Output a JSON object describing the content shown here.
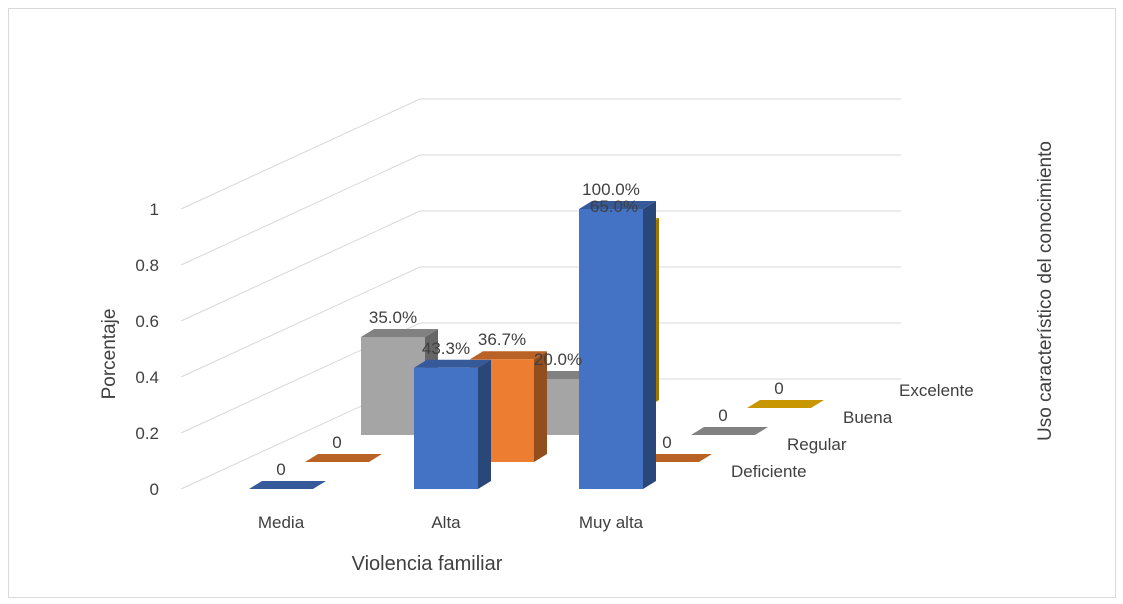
{
  "chart_data": {
    "type": "bar",
    "subtype": "3d-column",
    "title": "",
    "xlabel": "Violencia familiar",
    "ylabel": "Porcentaje",
    "zlabel": "Uso característico del conocimiento",
    "categories": [
      "Media",
      "Alta",
      "Muy alta"
    ],
    "ylim": [
      0,
      1
    ],
    "yticks": [
      "0",
      "0.2",
      "0.4",
      "0.6",
      "0.8",
      "1"
    ],
    "grid": true,
    "series": [
      {
        "name": "Deficiente",
        "color": "#4472c4",
        "values": [
          0,
          0.433,
          1.0
        ],
        "labels": [
          "0",
          "43.3%",
          "100.0%"
        ]
      },
      {
        "name": "Regular",
        "color": "#ed7d31",
        "values": [
          0,
          0.367,
          0
        ],
        "labels": [
          "0",
          "36.7%",
          "0"
        ]
      },
      {
        "name": "Buena",
        "color": "#a5a5a5",
        "values": [
          0.35,
          0.2,
          0
        ],
        "labels": [
          "35.0%",
          "20.0%",
          "0"
        ]
      },
      {
        "name": "Excelente",
        "color": "#ffc000",
        "values": [
          0,
          0.65,
          0
        ],
        "labels": [
          "",
          "65.0%",
          "0"
        ]
      }
    ]
  }
}
